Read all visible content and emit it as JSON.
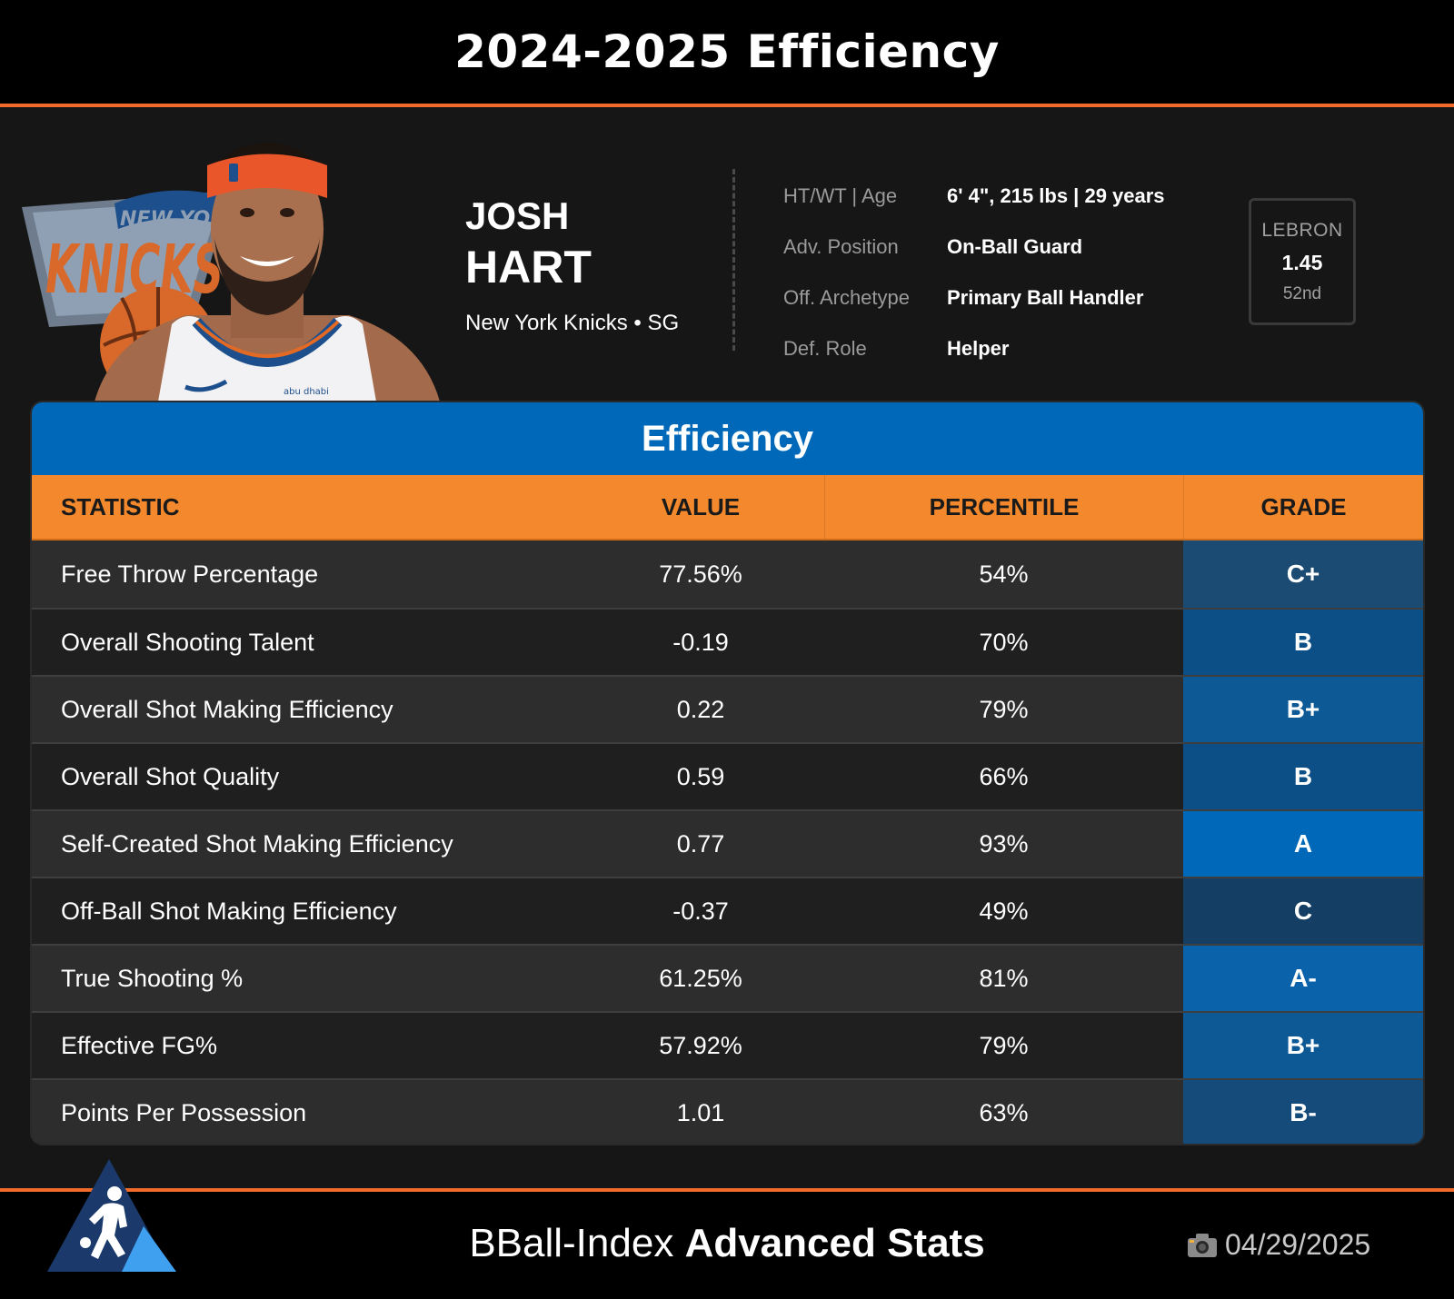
{
  "header": {
    "title": "2024-2025 Efficiency"
  },
  "player": {
    "first_name": "JOSH",
    "last_name": "HART",
    "team_position": "New York Knicks • SG",
    "logo_text": "NEW YORK KNICKS",
    "jersey_sponsor": "abu dhabi"
  },
  "info": [
    {
      "label": "HT/WT | Age",
      "value": "6' 4\", 215 lbs | 29 years"
    },
    {
      "label": "Adv. Position",
      "value": "On-Ball Guard"
    },
    {
      "label": "Off. Archetype",
      "value": "Primary Ball Handler"
    },
    {
      "label": "Def. Role",
      "value": "Helper"
    }
  ],
  "lebron": {
    "label": "LEBRON",
    "value": "1.45",
    "rank": "52nd"
  },
  "table": {
    "title": "Efficiency",
    "headers": {
      "statistic": "STATISTIC",
      "value": "VALUE",
      "percentile": "PERCENTILE",
      "grade": "GRADE"
    },
    "rows": [
      {
        "statistic": "Free Throw Percentage",
        "value": "77.56%",
        "percentile": "54%",
        "grade": "C+",
        "grade_color": "#1b4a72"
      },
      {
        "statistic": "Overall Shooting Talent",
        "value": "-0.19",
        "percentile": "70%",
        "grade": "B",
        "grade_color": "#0c4f86"
      },
      {
        "statistic": "Overall Shot Making Efficiency",
        "value": "0.22",
        "percentile": "79%",
        "grade": "B+",
        "grade_color": "#0d5996"
      },
      {
        "statistic": "Overall Shot Quality",
        "value": "0.59",
        "percentile": "66%",
        "grade": "B",
        "grade_color": "#0c4f86"
      },
      {
        "statistic": "Self-Created Shot Making Efficiency",
        "value": "0.77",
        "percentile": "93%",
        "grade": "A",
        "grade_color": "#0068b8"
      },
      {
        "statistic": "Off-Ball Shot Making Efficiency",
        "value": "-0.37",
        "percentile": "49%",
        "grade": "C",
        "grade_color": "#143e63"
      },
      {
        "statistic": "True Shooting %",
        "value": "61.25%",
        "percentile": "81%",
        "grade": "A-",
        "grade_color": "#0a62ab"
      },
      {
        "statistic": "Effective FG%",
        "value": "57.92%",
        "percentile": "79%",
        "grade": "B+",
        "grade_color": "#0d5996"
      },
      {
        "statistic": "Points Per Possession",
        "value": "1.01",
        "percentile": "63%",
        "grade": "B-",
        "grade_color": "#154b7b"
      }
    ]
  },
  "footer": {
    "brand_light": "BBall-Index",
    "brand_bold": "Advanced Stats",
    "date": "04/29/2025",
    "date_icon": "camera-icon"
  },
  "colors": {
    "accent_orange": "#f06a2a",
    "header_orange": "#f3882c",
    "brand_blue": "#0068b8"
  }
}
